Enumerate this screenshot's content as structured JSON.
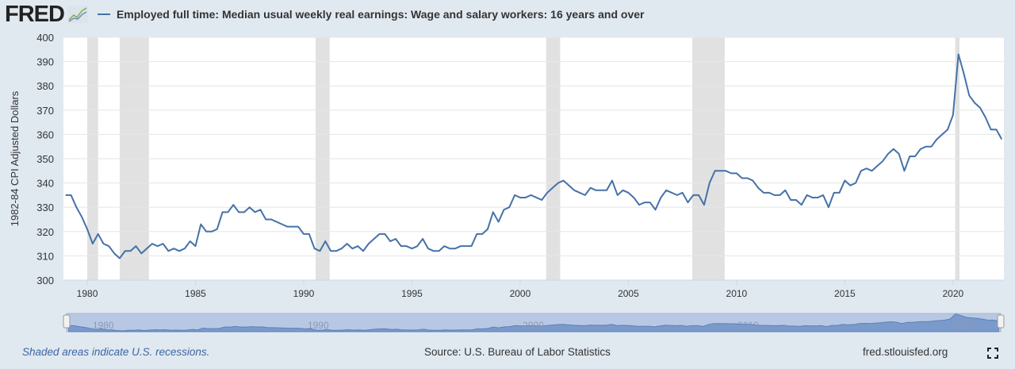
{
  "header": {
    "logo": "FRED",
    "series_title": "Employed full time: Median usual weekly real earnings: Wage and salary workers: 16 years and over"
  },
  "footer": {
    "recession_note": "Shaded areas indicate U.S. recessions.",
    "source": "Source: U.S. Bureau of Labor Statistics",
    "site": "fred.stlouisfed.org"
  },
  "colors": {
    "line": "#4572a7",
    "recession": "#e1e1e1",
    "navigator": "#b6c6e2"
  },
  "chart_data": {
    "type": "line",
    "title": "Employed full time: Median usual weekly real earnings: Wage and salary workers: 16 years and over",
    "xlabel": "",
    "ylabel": "1982-84 CPI Adjusted Dollars",
    "ylim": [
      300,
      400
    ],
    "xlim": [
      1978.9,
      2022.35
    ],
    "yticks": [
      300,
      310,
      320,
      330,
      340,
      350,
      360,
      370,
      380,
      390,
      400
    ],
    "xticks": [
      1980,
      1985,
      1990,
      1995,
      2000,
      2005,
      2010,
      2015,
      2020
    ],
    "navigator_ticks": [
      1980,
      1990,
      2000,
      2010,
      2020
    ],
    "grid": true,
    "x_start": 1979.0,
    "x_step": 0.25,
    "values": [
      335,
      335,
      330,
      326,
      321,
      315,
      319,
      315,
      314,
      311,
      309,
      312,
      312,
      314,
      311,
      313,
      315,
      314,
      315,
      312,
      313,
      312,
      313,
      316,
      314,
      323,
      320,
      320,
      321,
      328,
      328,
      331,
      328,
      328,
      330,
      328,
      329,
      325,
      325,
      324,
      323,
      322,
      322,
      322,
      319,
      319,
      313,
      312,
      316,
      312,
      312,
      313,
      315,
      313,
      314,
      312,
      315,
      317,
      319,
      319,
      316,
      317,
      314,
      314,
      313,
      314,
      317,
      313,
      312,
      312,
      314,
      313,
      313,
      314,
      314,
      314,
      319,
      319,
      321,
      328,
      324,
      329,
      330,
      335,
      334,
      334,
      335,
      334,
      333,
      336,
      338,
      340,
      341,
      339,
      337,
      336,
      335,
      338,
      337,
      337,
      337,
      341,
      335,
      337,
      336,
      334,
      331,
      332,
      332,
      329,
      334,
      337,
      336,
      335,
      336,
      332,
      335,
      335,
      331,
      340,
      345,
      345,
      345,
      344,
      344,
      342,
      342,
      341,
      338,
      336,
      336,
      335,
      335,
      337,
      333,
      333,
      331,
      335,
      334,
      334,
      335,
      330,
      336,
      336,
      341,
      339,
      340,
      345,
      346,
      345,
      347,
      349,
      352,
      354,
      352,
      345,
      351,
      351,
      354,
      355,
      355,
      358,
      360,
      362,
      368,
      393,
      385,
      376,
      373,
      371,
      367,
      362,
      362,
      358
    ],
    "recessions": [
      [
        1980.0,
        1980.5
      ],
      [
        1981.5,
        1982.85
      ],
      [
        1990.55,
        1991.2
      ],
      [
        2001.2,
        2001.85
      ],
      [
        2007.95,
        2009.45
      ],
      [
        2020.1,
        2020.3
      ]
    ]
  }
}
